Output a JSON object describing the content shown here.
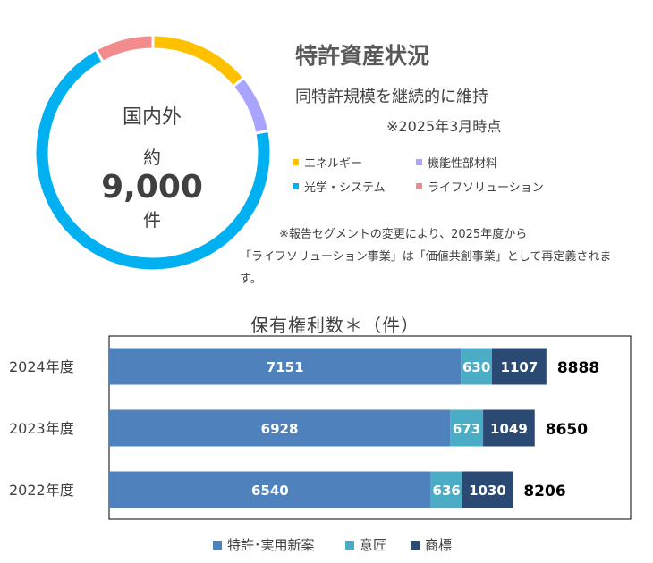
{
  "donut": {
    "center_line1": "国内外",
    "center_prefix": "約",
    "center_number": "9,000",
    "center_suffix": "件"
  },
  "heading": {
    "title": "特許資産状況",
    "subtitle": "同特許規模を継続的に維持",
    "as_of": "※2025年3月時点"
  },
  "note": {
    "line1": "※報告セグメントの変更により、2025年度から",
    "line2": "「ライフソリューション事業」は「価値共創事業」として再定義されます。"
  },
  "chart_data": [
    {
      "type": "pie",
      "subtype": "donut",
      "slices": [
        {
          "label": "エネルギー",
          "value": 14,
          "color": "#FFC000"
        },
        {
          "label": "機能性部材料",
          "value": 8,
          "color": "#A9A4FF"
        },
        {
          "label": "光学・システム",
          "value": 70,
          "color": "#00B0F0"
        },
        {
          "label": "ライフソリューション",
          "value": 8,
          "color": "#F28B8B"
        }
      ],
      "legend": [
        {
          "label": "エネルギー",
          "color": "#FFC000"
        },
        {
          "label": "機能性部材料",
          "color": "#A9A4FF"
        },
        {
          "label": "光学・システム",
          "color": "#00B0F0"
        },
        {
          "label": "ライフソリューション",
          "color": "#F28B8B"
        }
      ]
    },
    {
      "type": "bar",
      "orientation": "horizontal",
      "stacked": true,
      "title": "保有権利数＊（件）",
      "categories": [
        "2024年度",
        "2023年度",
        "2022年度"
      ],
      "series": [
        {
          "name": "特許･実用新案",
          "values": [
            7151,
            6928,
            6540
          ],
          "color": "#4F81BD"
        },
        {
          "name": "意匠",
          "values": [
            630,
            673,
            636
          ],
          "color": "#4BACC6"
        },
        {
          "name": "商標",
          "values": [
            1107,
            1049,
            1030
          ],
          "color": "#2A4A73"
        }
      ],
      "totals": [
        8888,
        8650,
        8206
      ],
      "xlim": [
        0,
        10600
      ],
      "legend_position": "bottom"
    }
  ]
}
